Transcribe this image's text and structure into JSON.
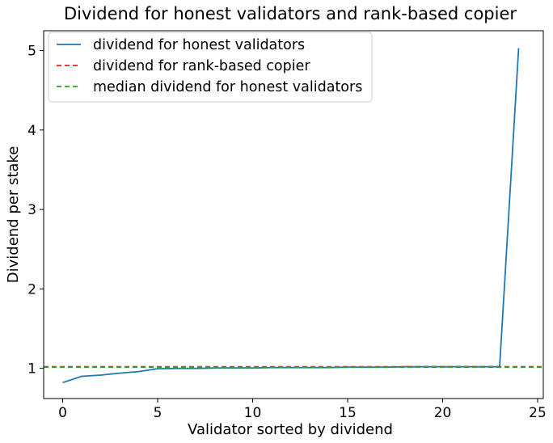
{
  "chart_data": {
    "type": "line",
    "title": "Dividend for honest validators and rank-based copier",
    "xlabel": "Validator sorted by dividend",
    "ylabel": "Dividend per stake",
    "xlim": [
      -1,
      25.3
    ],
    "ylim": [
      0.62,
      5.25
    ],
    "xticks": [
      0,
      5,
      10,
      15,
      20,
      25
    ],
    "yticks": [
      1,
      2,
      3,
      4,
      5
    ],
    "grid": false,
    "legend_position": "top-left",
    "series": [
      {
        "name": "dividend for honest validators",
        "style": "solid",
        "color": "#1f77b4",
        "x": [
          0,
          1,
          2,
          3,
          4,
          5,
          6,
          7,
          8,
          9,
          10,
          11,
          12,
          13,
          14,
          15,
          16,
          17,
          18,
          19,
          20,
          21,
          22,
          23,
          24
        ],
        "values": [
          0.82,
          0.9,
          0.915,
          0.94,
          0.96,
          0.995,
          1.0,
          1.0,
          1.005,
          1.005,
          1.005,
          1.01,
          1.01,
          1.01,
          1.01,
          1.015,
          1.015,
          1.015,
          1.02,
          1.02,
          1.02,
          1.02,
          1.02,
          1.02,
          5.03
        ]
      },
      {
        "name": "dividend for rank-based copier",
        "style": "dashed",
        "color": "#e8212b",
        "constant": 1.02
      },
      {
        "name": "median dividend for honest validators",
        "style": "dashed",
        "color": "#2ca02c",
        "constant": 1.015
      }
    ]
  }
}
